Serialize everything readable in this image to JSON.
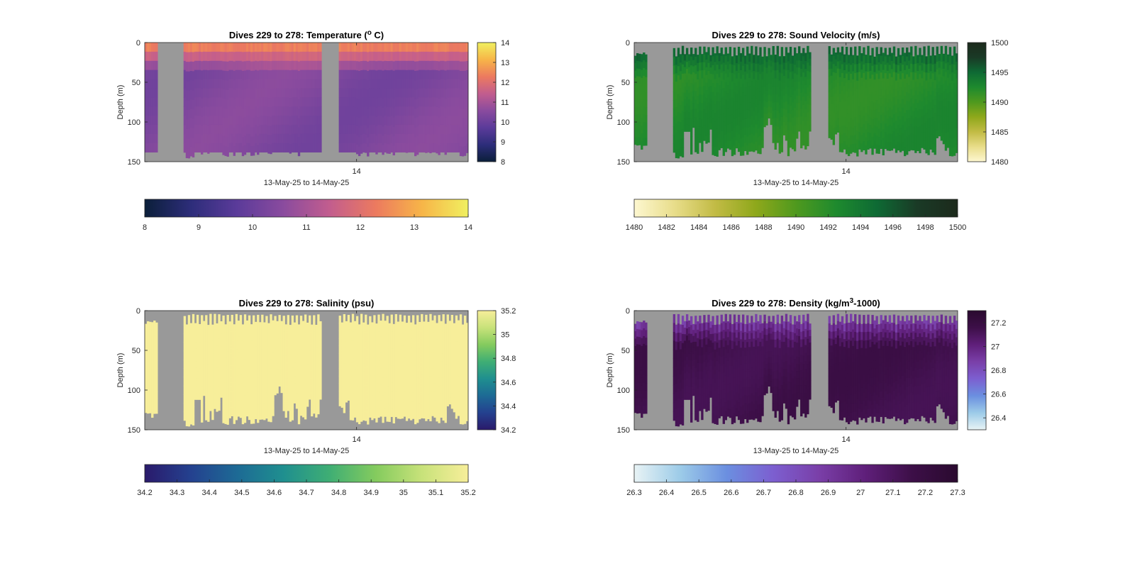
{
  "figure": {
    "background": "#ffffff",
    "no_data_color": "#999999"
  },
  "chart_data": [
    {
      "type": "heatmap",
      "title": "Dives 229 to 278: Temperature (",
      "title_sup": "o",
      "title_end": " C)",
      "variable": "temperature",
      "xlabel": "13-May-25 to 14-May-25",
      "ylabel": "Depth (m)",
      "ylim": [
        0,
        150
      ],
      "yticks": [
        "0",
        "50",
        "100",
        "150"
      ],
      "xticks": [
        "14"
      ],
      "clim": [
        8,
        14
      ],
      "colorscale": [
        "#0b1f3a",
        "#2d2d7a",
        "#5b3b9a",
        "#8a4b9e",
        "#c25d8e",
        "#ec7a5f",
        "#f7b548",
        "#f0f060"
      ],
      "side_colorbar_ticks": [
        "8",
        "9",
        "10",
        "11",
        "12",
        "13",
        "14"
      ],
      "bottom_colorbar_ticks": [
        "8",
        "9",
        "10",
        "11",
        "12",
        "13",
        "14"
      ],
      "profile_bottoms": [
        143,
        143,
        140,
        140,
        140,
        140,
        140,
        140,
        0,
        0,
        0,
        0,
        0,
        0,
        0,
        0,
        0,
        0,
        0,
        0,
        148,
        148,
        148,
        148,
        148,
        148,
        148,
        148,
        148,
        148,
        148,
        120,
        128,
        148,
        148,
        128,
        128,
        148,
        148,
        148,
        148,
        148,
        148,
        150,
        148,
        148,
        148,
        148,
        148,
        148,
        148,
        148,
        148,
        148,
        148,
        148,
        148,
        130,
        130,
        130,
        148,
        148,
        148,
        148,
        148,
        0,
        0,
        0,
        0,
        0,
        0,
        0,
        0,
        0,
        0,
        0,
        0,
        0,
        0,
        0,
        123,
        130,
        140,
        140,
        140,
        140,
        140,
        140,
        143,
        143,
        143,
        143,
        143,
        143,
        143,
        143,
        143,
        143,
        143,
        143,
        143,
        143,
        143,
        143,
        143,
        143,
        143,
        143,
        143,
        143,
        143,
        143,
        143,
        143,
        143,
        143,
        143,
        143,
        143,
        143,
        143,
        143,
        143,
        143,
        143,
        143,
        143,
        143,
        143,
        130,
        130,
        143,
        143,
        143,
        143,
        143,
        140,
        140
      ],
      "surface_values": [
        12.5,
        12.2
      ],
      "interior_values": [
        10.6,
        10.1
      ]
    },
    {
      "type": "heatmap",
      "title": "Dives 229 to 278: Sound Velocity (m/s)",
      "variable": "sound_velocity",
      "xlabel": "13-May-25 to 14-May-25",
      "ylabel": "Depth (m)",
      "ylim": [
        0,
        150
      ],
      "yticks": [
        "0",
        "50",
        "100",
        "150"
      ],
      "xticks": [
        "14"
      ],
      "clim": [
        1480,
        1500
      ],
      "colorscale": [
        "#fdf7d0",
        "#e8dd8a",
        "#c2bb45",
        "#8fa81b",
        "#4f991e",
        "#1e8a2e",
        "#0e6a34",
        "#1a3a26",
        "#1c2a1c"
      ],
      "side_colorbar_ticks": [
        "1480",
        "1485",
        "1490",
        "1495",
        "1500"
      ],
      "bottom_colorbar_ticks": [
        "1480",
        "1482",
        "1484",
        "1486",
        "1488",
        "1490",
        "1492",
        "1494",
        "1496",
        "1498",
        "1500"
      ],
      "profile_tops": [
        15,
        12,
        15,
        15,
        12,
        15,
        10,
        15,
        0,
        0,
        0,
        0,
        0,
        0,
        0,
        0,
        0,
        0,
        0,
        0,
        5,
        15,
        5,
        15,
        5,
        15,
        15,
        5,
        15,
        5,
        15,
        15,
        5,
        15,
        5,
        15,
        5,
        15,
        15,
        5,
        15,
        5,
        15,
        5,
        15,
        5,
        15,
        15,
        5,
        15,
        5,
        15,
        5,
        15,
        15,
        5,
        15,
        15,
        5,
        15,
        5,
        15,
        15,
        5,
        15,
        0,
        0,
        0,
        0,
        0,
        0,
        0,
        0,
        0,
        0,
        5,
        15,
        5,
        15,
        5,
        15,
        5,
        15,
        15,
        5,
        15,
        5,
        15,
        5,
        15,
        15,
        5,
        15,
        5,
        15,
        5,
        15,
        15,
        5,
        15,
        5,
        15,
        15,
        5,
        15,
        5,
        15,
        15,
        5,
        15,
        15,
        5,
        15,
        15,
        5,
        15,
        5,
        15,
        5,
        15,
        15,
        5,
        15,
        5,
        15,
        5,
        15,
        15,
        5,
        15,
        5,
        15,
        15,
        5,
        15,
        5,
        15,
        5,
        15,
        15,
        5,
        15,
        5,
        15,
        15,
        5,
        15,
        5
      ],
      "surface_values": [
        1495.5,
        1494.5
      ],
      "interior_values": [
        1493.0,
        1491.5
      ]
    },
    {
      "type": "heatmap",
      "title": "Dives 229 to 278: Salinity (psu)",
      "variable": "salinity",
      "xlabel": "13-May-25 to 14-May-25",
      "ylabel": "Depth (m)",
      "ylim": [
        0,
        150
      ],
      "yticks": [
        "0",
        "50",
        "100",
        "150"
      ],
      "xticks": [
        "14"
      ],
      "clim": [
        34.2,
        35.2
      ],
      "colorscale": [
        "#2a1a6b",
        "#24418f",
        "#1d6a95",
        "#1f8f8f",
        "#3fae74",
        "#84cb5e",
        "#c8e27a",
        "#f7ee9a"
      ],
      "side_colorbar_ticks": [
        "34.2",
        "34.4",
        "34.6",
        "34.8",
        "35",
        "35.2"
      ],
      "bottom_colorbar_ticks": [
        "34.2",
        "34.3",
        "34.4",
        "34.5",
        "34.6",
        "34.7",
        "34.8",
        "34.9",
        "35",
        "35.1",
        "35.2"
      ],
      "surface_values": [
        35.2,
        35.2
      ],
      "interior_values": [
        35.2,
        35.2
      ]
    },
    {
      "type": "heatmap",
      "title": "Dives 229 to 278: Density (kg/m",
      "title_sup": "3",
      "title_end": "-1000)",
      "variable": "density",
      "xlabel": "13-May-25 to 14-May-25",
      "ylabel": "Depth (m)",
      "ylim": [
        0,
        150
      ],
      "yticks": [
        "0",
        "50",
        "100",
        "150"
      ],
      "xticks": [
        "14"
      ],
      "clim": [
        26.3,
        27.3
      ],
      "colorscale": [
        "#e8f3f5",
        "#9ccbe8",
        "#6b8fe0",
        "#7c5fd0",
        "#7a3fa8",
        "#5f1f7a",
        "#3d0f48",
        "#2a0a2f"
      ],
      "side_colorbar_ticks": [
        "26.4",
        "26.6",
        "26.8",
        "27",
        "27.2"
      ],
      "bottom_colorbar_ticks": [
        "26.3",
        "26.4",
        "26.5",
        "26.6",
        "26.7",
        "26.8",
        "26.9",
        "27",
        "27.1",
        "27.2",
        "27.3"
      ],
      "surface_values": [
        26.85,
        26.95
      ],
      "interior_values": [
        27.12,
        27.18
      ]
    }
  ]
}
